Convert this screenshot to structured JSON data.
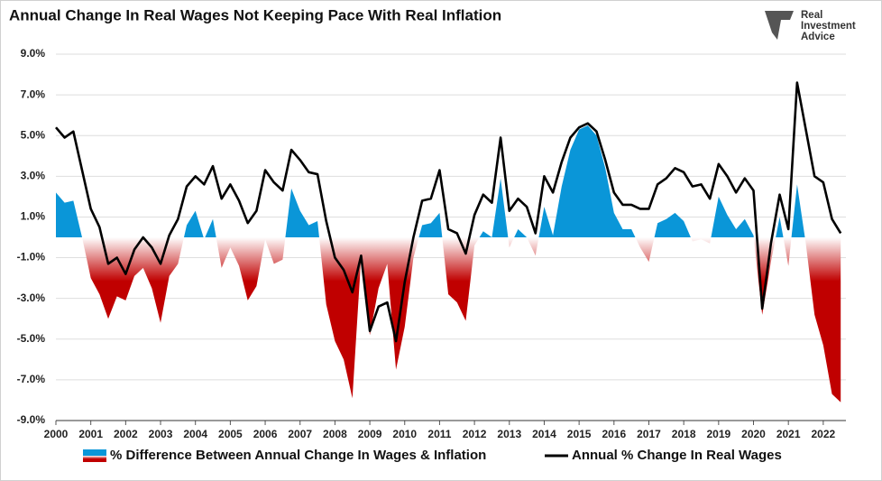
{
  "chart_data": {
    "type": "area",
    "title": "Annual Change In Real Wages Not Keeping Pace With Real Inflation",
    "brand_lines": [
      "Real",
      "Investment",
      "Advice"
    ],
    "x": [
      2000,
      2000.25,
      2000.5,
      2000.75,
      2001,
      2001.25,
      2001.5,
      2001.75,
      2002,
      2002.25,
      2002.5,
      2002.75,
      2003,
      2003.25,
      2003.5,
      2003.75,
      2004,
      2004.25,
      2004.5,
      2004.75,
      2005,
      2005.25,
      2005.5,
      2005.75,
      2006,
      2006.25,
      2006.5,
      2006.75,
      2007,
      2007.25,
      2007.5,
      2007.75,
      2008,
      2008.25,
      2008.5,
      2008.75,
      2009,
      2009.25,
      2009.5,
      2009.75,
      2010,
      2010.25,
      2010.5,
      2010.75,
      2011,
      2011.25,
      2011.5,
      2011.75,
      2012,
      2012.25,
      2012.5,
      2012.75,
      2013,
      2013.25,
      2013.5,
      2013.75,
      2014,
      2014.25,
      2014.5,
      2014.75,
      2015,
      2015.25,
      2015.5,
      2015.75,
      2016,
      2016.25,
      2016.5,
      2016.75,
      2017,
      2017.25,
      2017.5,
      2017.75,
      2018,
      2018.25,
      2018.5,
      2018.75,
      2019,
      2019.25,
      2019.5,
      2019.75,
      2020,
      2020.25,
      2020.5,
      2020.75,
      2021,
      2021.25,
      2021.5,
      2021.75,
      2022,
      2022.25,
      2022.5
    ],
    "series": [
      {
        "name": "% Difference Between Annual Change In Wages & Inflation",
        "type": "area",
        "color": "#0a96d8",
        "negative_color": "#c00000",
        "values": [
          2.2,
          1.7,
          1.8,
          0.0,
          -2.0,
          -2.8,
          -4.0,
          -2.9,
          -3.1,
          -1.9,
          -1.5,
          -2.5,
          -4.2,
          -1.9,
          -1.3,
          0.6,
          1.3,
          -0.1,
          0.9,
          -1.5,
          -0.5,
          -1.4,
          -3.1,
          -2.4,
          -0.1,
          -1.3,
          -1.1,
          2.4,
          1.3,
          0.6,
          0.8,
          -3.3,
          -5.1,
          -6.0,
          -7.9,
          -1.0,
          -4.8,
          -2.5,
          -1.3,
          -6.5,
          -4.4,
          -1.0,
          0.6,
          0.7,
          1.2,
          -2.8,
          -3.2,
          -4.1,
          -0.4,
          0.3,
          0.0,
          2.9,
          -0.5,
          0.4,
          0.0,
          -0.9,
          1.5,
          0.1,
          2.5,
          4.3,
          5.3,
          5.5,
          5.0,
          3.4,
          1.2,
          0.4,
          0.4,
          -0.5,
          -1.2,
          0.7,
          0.9,
          1.2,
          0.8,
          -0.2,
          -0.1,
          -0.3,
          2.0,
          1.1,
          0.4,
          0.9,
          0.1,
          -3.8,
          -1.2,
          1.0,
          -1.4,
          2.6,
          -0.3,
          -3.8,
          -5.3,
          -7.7,
          -8.1
        ]
      },
      {
        "name": "Annual % Change In Real Wages",
        "type": "line",
        "color": "#000000",
        "values": [
          5.4,
          4.9,
          5.2,
          3.3,
          1.4,
          0.5,
          -1.3,
          -1.0,
          -1.8,
          -0.6,
          0.0,
          -0.5,
          -1.3,
          0.1,
          0.9,
          2.5,
          3.0,
          2.6,
          3.5,
          1.9,
          2.6,
          1.8,
          0.7,
          1.3,
          3.3,
          2.7,
          2.3,
          4.3,
          3.8,
          3.2,
          3.1,
          0.8,
          -1.0,
          -1.6,
          -2.7,
          -0.9,
          -4.6,
          -3.4,
          -3.2,
          -5.1,
          -2.2,
          0.0,
          1.8,
          1.9,
          3.3,
          0.4,
          0.2,
          -0.8,
          1.1,
          2.1,
          1.7,
          4.9,
          1.3,
          1.9,
          1.5,
          0.2,
          3.0,
          2.2,
          3.7,
          4.9,
          5.4,
          5.6,
          5.2,
          3.8,
          2.2,
          1.6,
          1.6,
          1.4,
          1.4,
          2.6,
          2.9,
          3.4,
          3.2,
          2.5,
          2.6,
          1.9,
          3.6,
          3.0,
          2.2,
          2.9,
          2.3,
          -3.5,
          -0.3,
          2.1,
          0.4,
          7.6,
          5.3,
          3.0,
          2.7,
          0.9,
          0.2
        ]
      }
    ],
    "xlim": [
      2000,
      2022.65
    ],
    "xticks": [
      2000,
      2001,
      2002,
      2003,
      2004,
      2005,
      2006,
      2007,
      2008,
      2009,
      2010,
      2011,
      2012,
      2013,
      2014,
      2015,
      2016,
      2017,
      2018,
      2019,
      2020,
      2021,
      2022
    ],
    "ylim": [
      -9,
      9
    ],
    "yticks": [
      {
        "value": 9,
        "label": "9.0%"
      },
      {
        "value": 7,
        "label": "7.0%"
      },
      {
        "value": 5,
        "label": "5.0%"
      },
      {
        "value": 3,
        "label": "3.0%"
      },
      {
        "value": 1,
        "label": "1.0%"
      },
      {
        "value": -1,
        "label": "-1.0%"
      },
      {
        "value": -3,
        "label": "-3.0%"
      },
      {
        "value": -5,
        "label": "-5.0%"
      },
      {
        "value": -7,
        "label": "-7.0%"
      },
      {
        "value": -9,
        "label": "-9.0%"
      }
    ],
    "grid": true
  }
}
